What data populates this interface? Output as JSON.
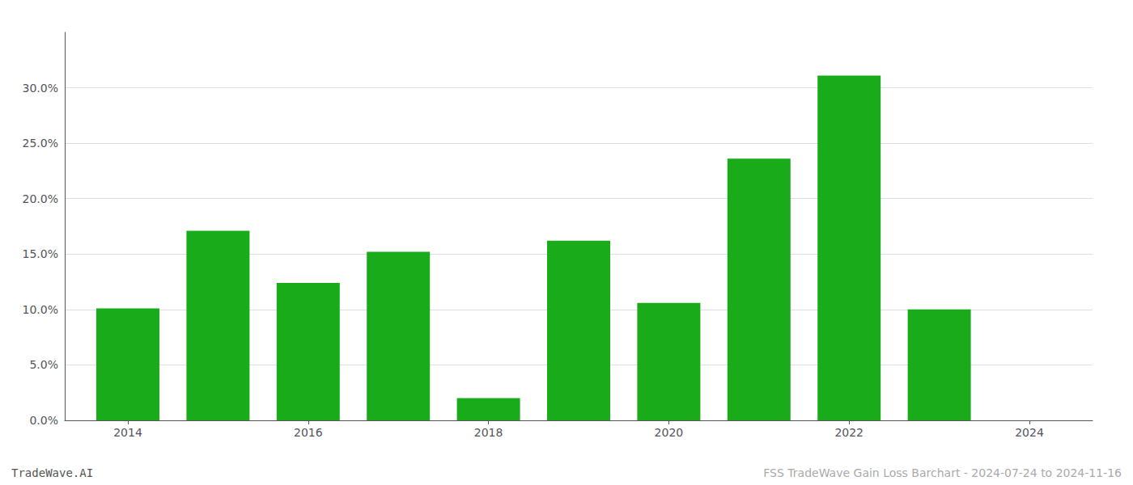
{
  "chart_data": {
    "type": "bar",
    "x": [
      2014,
      2015,
      2016,
      2017,
      2018,
      2019,
      2020,
      2021,
      2022,
      2023
    ],
    "values": [
      0.101,
      0.171,
      0.124,
      0.152,
      0.02,
      0.162,
      0.106,
      0.236,
      0.311,
      0.1
    ],
    "color": "#1aab1a",
    "xlim": [
      2013.3,
      2024.7
    ],
    "xticks": [
      2014,
      2016,
      2018,
      2020,
      2022,
      2024
    ],
    "ylim": [
      0.0,
      0.35
    ],
    "yticks": [
      {
        "value": 0.0,
        "label": "0.0%"
      },
      {
        "value": 0.05,
        "label": "5.0%"
      },
      {
        "value": 0.1,
        "label": "10.0%"
      },
      {
        "value": 0.15,
        "label": "15.0%"
      },
      {
        "value": 0.2,
        "label": "20.0%"
      },
      {
        "value": 0.25,
        "label": "25.0%"
      },
      {
        "value": 0.3,
        "label": "30.0%"
      }
    ],
    "grid": true,
    "annotations": [
      "TradeWave.AI",
      "FSS TradeWave Gain Loss Barchart - 2024-07-24 to 2024-11-16"
    ]
  }
}
